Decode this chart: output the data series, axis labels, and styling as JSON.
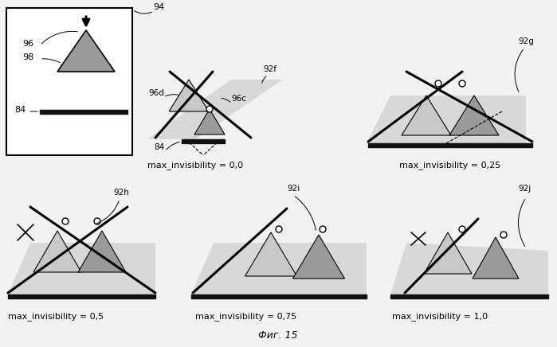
{
  "fig_label": "Фиг. 15",
  "bg": "#f2f2f2",
  "tri_dark": "#9a9a9a",
  "tri_light": "#c8c8c8",
  "surf_fill": "#d8d8d8",
  "bar_color": "#111111",
  "captions": [
    "max_invisibility = 0,0",
    "max_invisibility = 0,25",
    "max_invisibility = 0,5",
    "max_invisibility = 0,75",
    "max_invisibility = 1,0"
  ]
}
